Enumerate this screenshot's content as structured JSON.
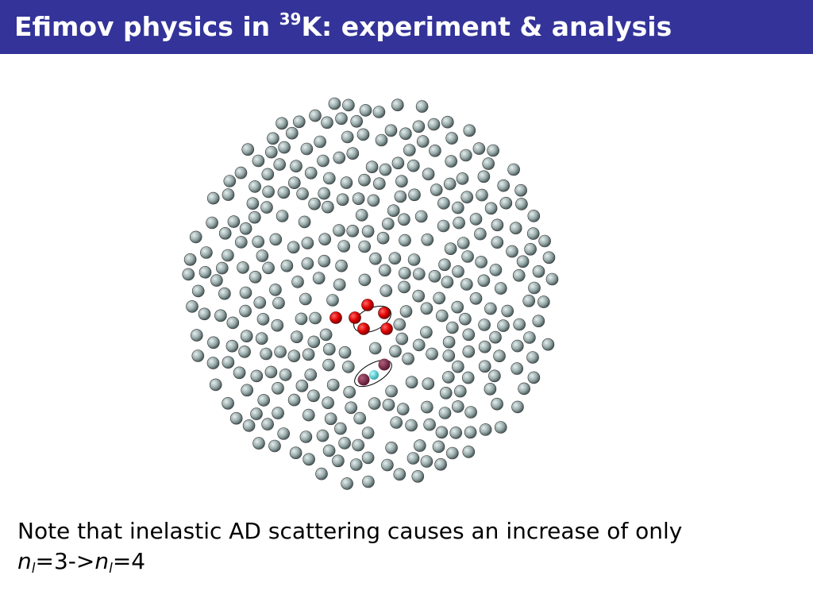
{
  "header": {
    "title": {
      "before": "Efimov physics in ",
      "superscript": "39",
      "after": "K: experiment & analysis"
    }
  },
  "note": {
    "line1": "Note that inelastic AD scattering causes an increase of only",
    "line2": {
      "symbol1": "n",
      "subscript1": "l",
      "middle": "=3->",
      "symbol2": "n",
      "subscript2": "l",
      "end": "=4"
    }
  }
}
